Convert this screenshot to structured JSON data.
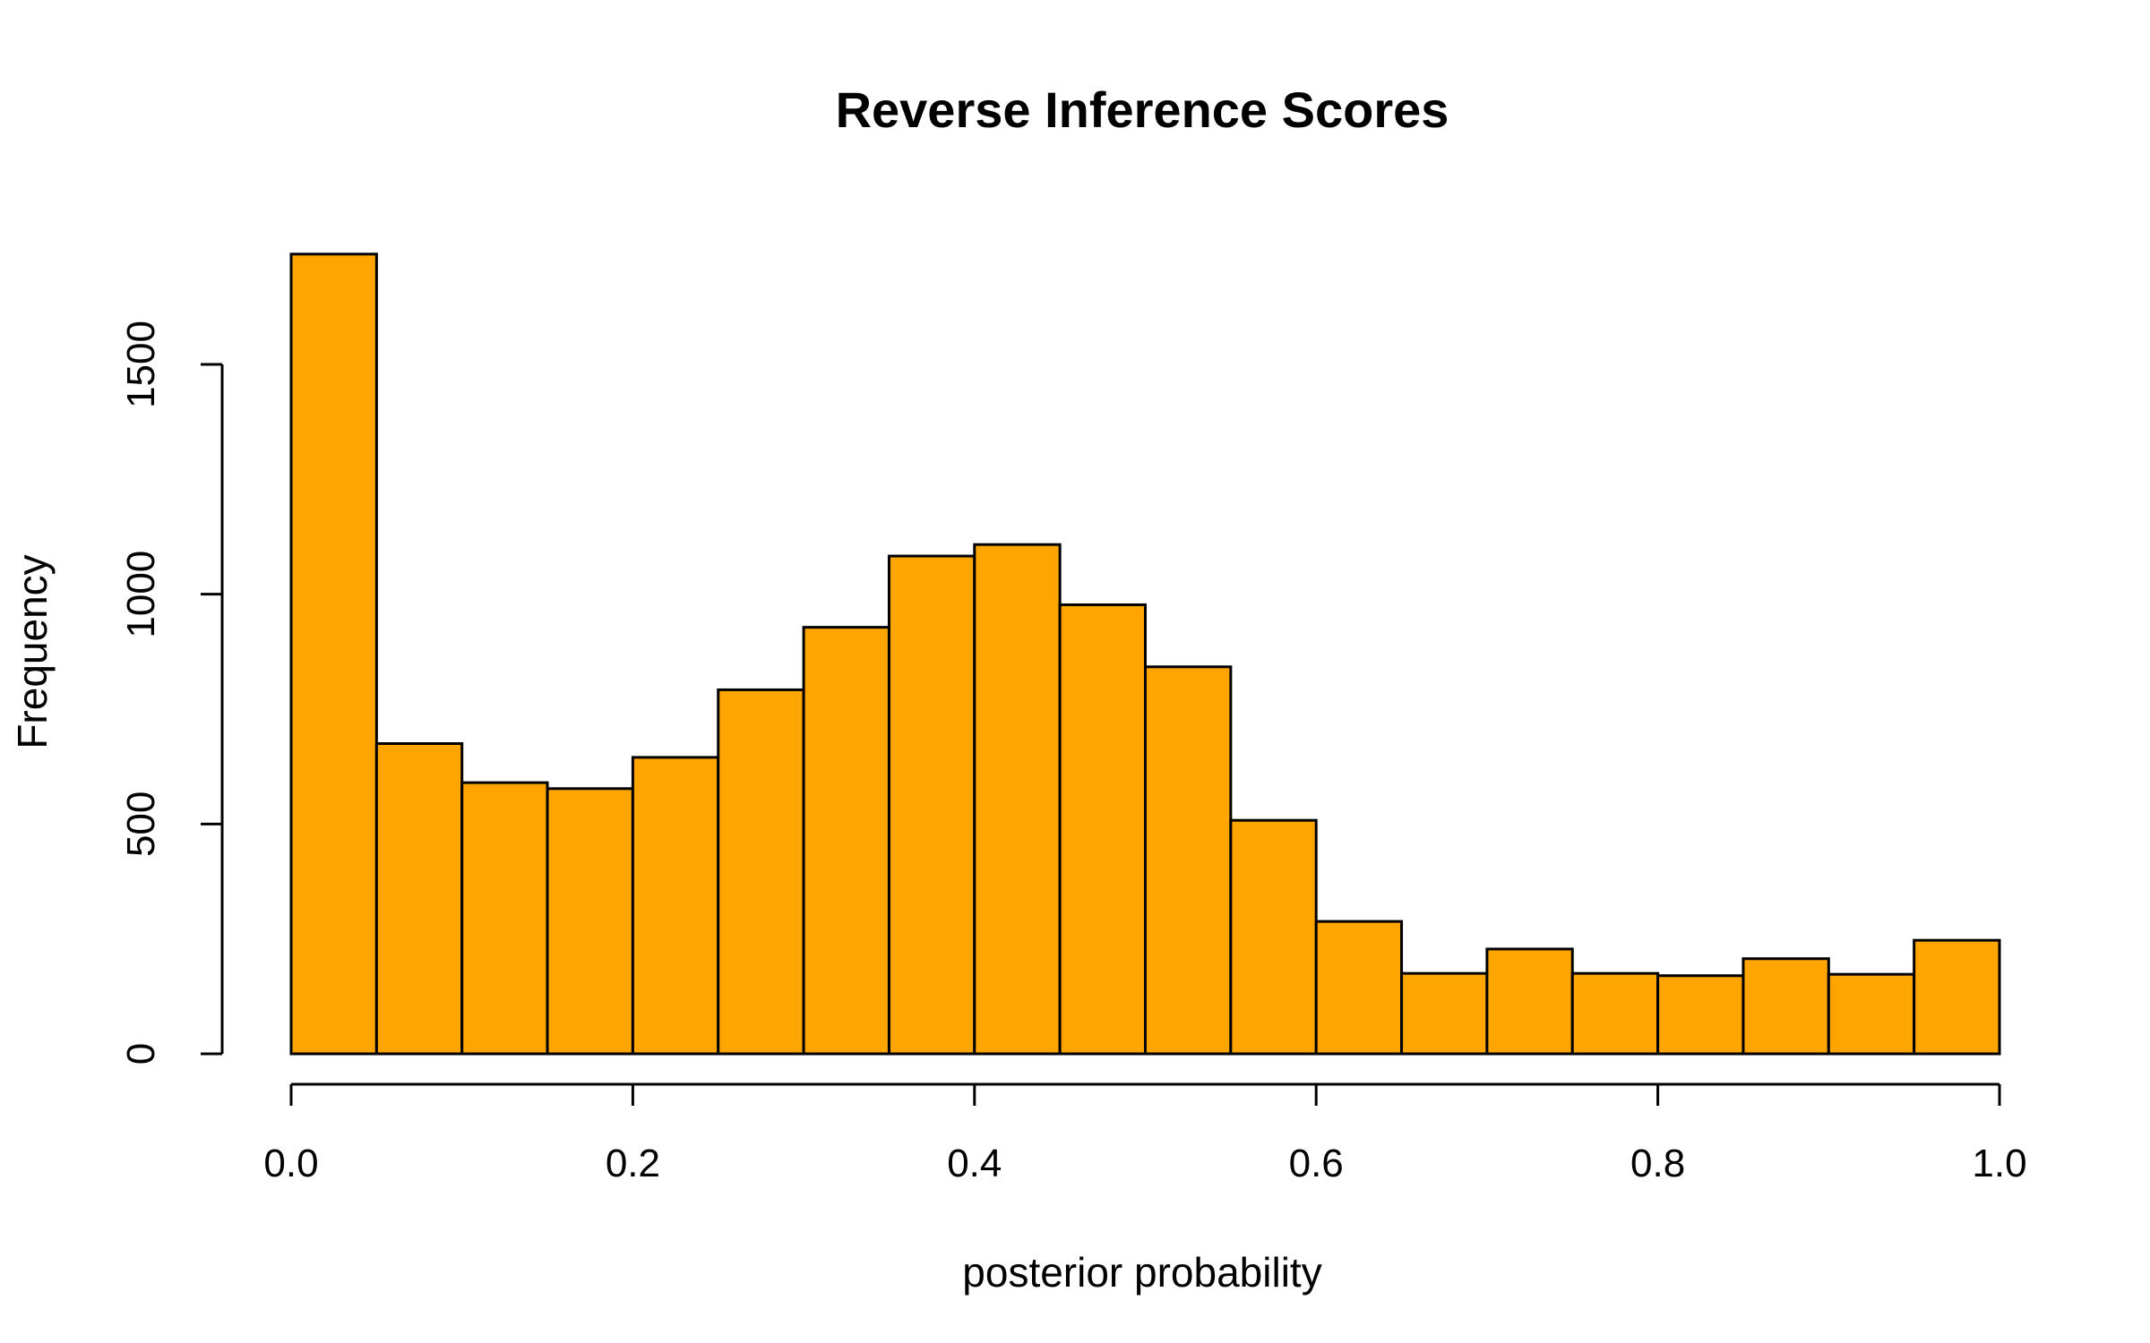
{
  "chart_data": {
    "type": "bar",
    "subtype": "histogram",
    "title": "Reverse Inference Scores",
    "xlabel": "posterior probability",
    "ylabel": "Frequency",
    "bar_color": "#FFA500",
    "edge_color": "#000000",
    "bin_edges": [
      0.0,
      0.05,
      0.1,
      0.15,
      0.2,
      0.25,
      0.3,
      0.35,
      0.4,
      0.45,
      0.5,
      0.55,
      0.6,
      0.65,
      0.7,
      0.75,
      0.8,
      0.85,
      0.9,
      0.95,
      1.0
    ],
    "values": [
      1740,
      675,
      590,
      577,
      645,
      792,
      928,
      1083,
      1108,
      977,
      842,
      508,
      288,
      175,
      228,
      175,
      170,
      207,
      173,
      247
    ],
    "xlim": [
      0.0,
      1.0
    ],
    "ylim": [
      0,
      1500
    ],
    "xticks": [
      {
        "value": 0.0,
        "label": "0.0"
      },
      {
        "value": 0.2,
        "label": "0.2"
      },
      {
        "value": 0.4,
        "label": "0.4"
      },
      {
        "value": 0.6,
        "label": "0.6"
      },
      {
        "value": 0.8,
        "label": "0.8"
      },
      {
        "value": 1.0,
        "label": "1.0"
      }
    ],
    "yticks": [
      {
        "value": 0,
        "label": "0"
      },
      {
        "value": 500,
        "label": "500"
      },
      {
        "value": 1000,
        "label": "1000"
      },
      {
        "value": 1500,
        "label": "1500"
      }
    ],
    "grid": false,
    "legend": "none"
  }
}
